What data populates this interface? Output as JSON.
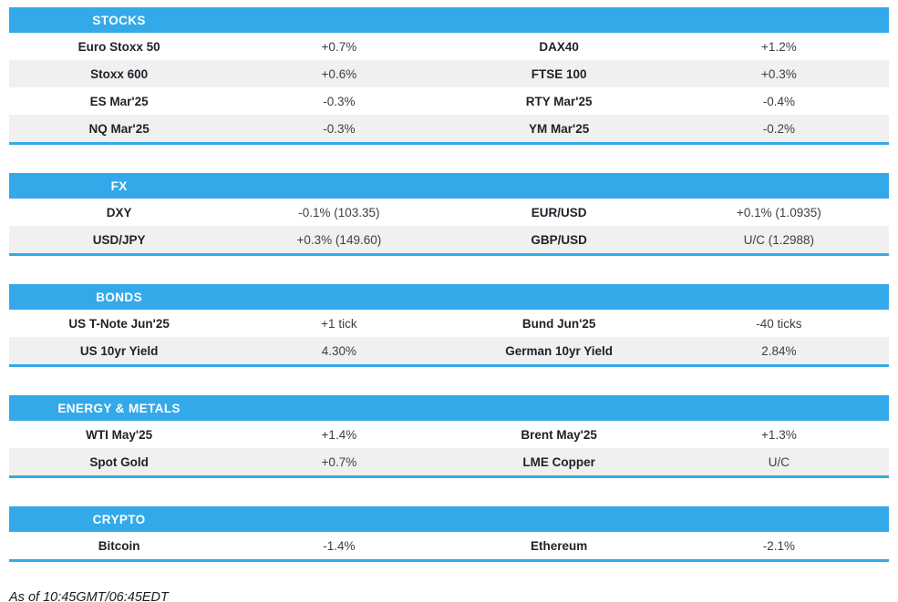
{
  "colors": {
    "accent_blue": "#33A9EA",
    "row_alt_gray": "#F0F0F0",
    "label_text": "#1E2228",
    "value_text": "#3A3F46",
    "header_text": "#FFFFFF"
  },
  "sections": [
    {
      "title": "STOCKS",
      "rows": [
        {
          "c0": "Euro Stoxx 50",
          "c1": "+0.7%",
          "c2": "DAX40",
          "c3": "+1.2%"
        },
        {
          "c0": "Stoxx 600",
          "c1": "+0.6%",
          "c2": "FTSE 100",
          "c3": "+0.3%"
        },
        {
          "c0": "ES Mar'25",
          "c1": "-0.3%",
          "c2": "RTY Mar'25",
          "c3": "-0.4%"
        },
        {
          "c0": "NQ Mar'25",
          "c1": "-0.3%",
          "c2": "YM Mar'25",
          "c3": "-0.2%"
        }
      ]
    },
    {
      "title": "FX",
      "rows": [
        {
          "c0": "DXY",
          "c1": "-0.1% (103.35)",
          "c2": "EUR/USD",
          "c3": "+0.1% (1.0935)"
        },
        {
          "c0": "USD/JPY",
          "c1": "+0.3% (149.60)",
          "c2": "GBP/USD",
          "c3": "U/C (1.2988)"
        }
      ]
    },
    {
      "title": "BONDS",
      "rows": [
        {
          "c0": "US T-Note Jun'25",
          "c1": "+1 tick",
          "c2": "Bund Jun'25",
          "c3": "-40 ticks"
        },
        {
          "c0": "US 10yr Yield",
          "c1": "4.30%",
          "c2": "German 10yr Yield",
          "c3": "2.84%"
        }
      ]
    },
    {
      "title": "ENERGY & METALS",
      "rows": [
        {
          "c0": "WTI May'25",
          "c1": "+1.4%",
          "c2": "Brent May'25",
          "c3": "+1.3%"
        },
        {
          "c0": "Spot Gold",
          "c1": "+0.7%",
          "c2": "LME Copper",
          "c3": "U/C"
        }
      ]
    },
    {
      "title": "CRYPTO",
      "rows": [
        {
          "c0": "Bitcoin",
          "c1": "-1.4%",
          "c2": "Ethereum",
          "c3": "-2.1%"
        }
      ]
    }
  ],
  "footer": {
    "as_of": "As of 10:45GMT/06:45EDT"
  }
}
